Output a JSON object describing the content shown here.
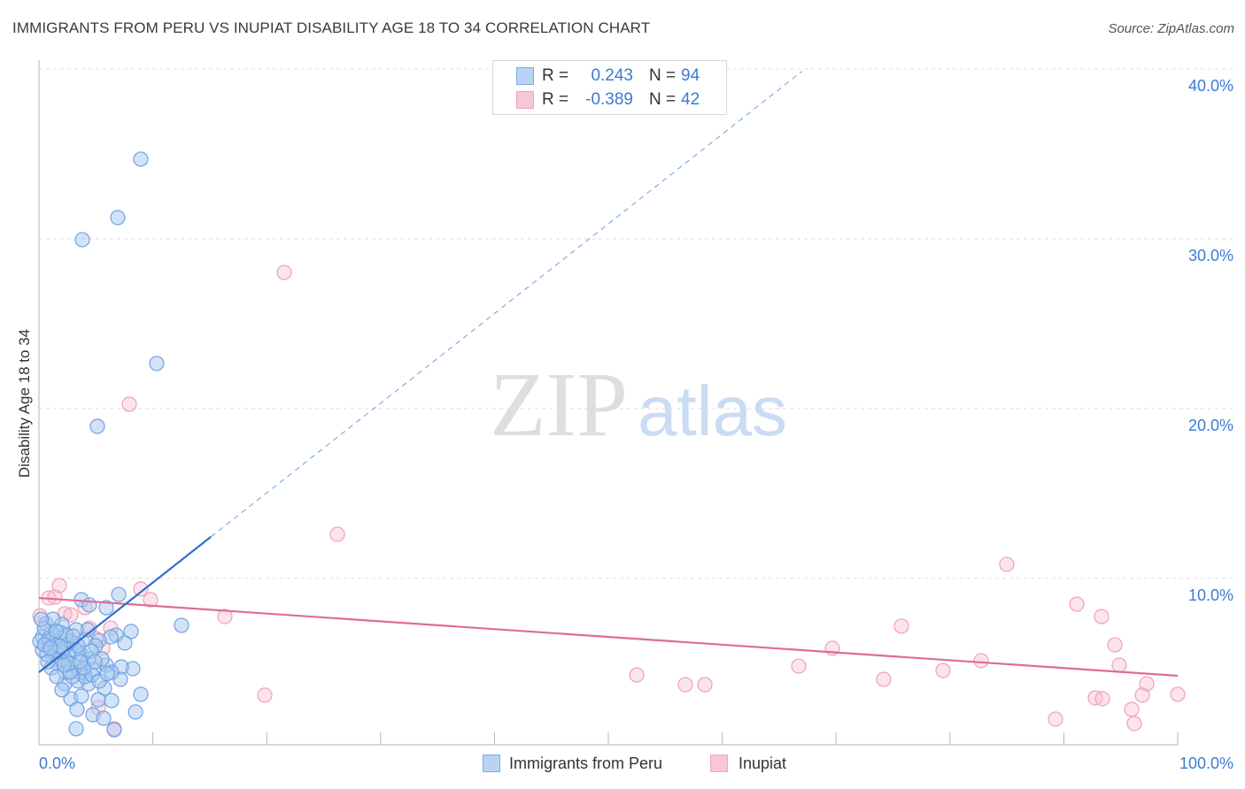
{
  "chart_data": {
    "type": "scatter",
    "title": "IMMIGRANTS FROM PERU VS INUPIAT DISABILITY AGE 18 TO 34 CORRELATION CHART",
    "source": "Source: ZipAtlas.com",
    "ylabel": "Disability Age 18 to 34",
    "xlim": [
      0,
      100
    ],
    "ylim": [
      0,
      40
    ],
    "grid": true,
    "legend_position": "top-center",
    "legend_labels": {
      "r": "R =",
      "n": "N ="
    },
    "x_ticks": [
      {
        "value": 0,
        "label": "0.0%"
      },
      {
        "value": 100,
        "label": "100.0%"
      }
    ],
    "x_tick_marks": [
      0,
      10,
      20,
      30,
      40,
      50,
      60,
      70,
      80,
      90,
      100
    ],
    "y_ticks": [
      {
        "value": 40,
        "label": "40.0%"
      },
      {
        "value": 30,
        "label": "30.0%"
      },
      {
        "value": 20,
        "label": "20.0%"
      },
      {
        "value": 10,
        "label": "10.0%"
      }
    ],
    "series": [
      {
        "name": "Immigrants from Peru",
        "r": "0.243",
        "n": "94",
        "marker_fill": "#a8c8f0",
        "marker_stroke": "#6fa2e2",
        "swatch_fill": "#b9d3f5",
        "swatch_stroke": "#7eaae6",
        "line_color": "#2f6fcf",
        "dash_color": "#6b9ee3",
        "trend": {
          "intercept": 4.48,
          "slope": 0.528,
          "solid_x_range": [
            0,
            15.1
          ],
          "dashed_x_range": [
            15.1,
            67
          ]
        },
        "points": [
          [
            8.94,
            34.69
          ],
          [
            6.92,
            31.25
          ],
          [
            3.81,
            29.95
          ],
          [
            10.34,
            22.66
          ],
          [
            5.13,
            18.96
          ],
          [
            12.52,
            7.24
          ],
          [
            7.0,
            9.06
          ],
          [
            3.73,
            8.75
          ],
          [
            5.91,
            8.28
          ],
          [
            4.43,
            8.44
          ],
          [
            8.09,
            6.88
          ],
          [
            6.77,
            6.67
          ],
          [
            4.04,
            6.41
          ],
          [
            6.3,
            6.56
          ],
          [
            5.29,
            6.35
          ],
          [
            0.62,
            7.34
          ],
          [
            2.02,
            7.29
          ],
          [
            8.24,
            4.69
          ],
          [
            7.23,
            4.79
          ],
          [
            5.91,
            4.9
          ],
          [
            4.82,
            4.64
          ],
          [
            3.11,
            4.9
          ],
          [
            7.15,
            4.06
          ],
          [
            5.75,
            3.54
          ],
          [
            4.35,
            3.8
          ],
          [
            2.26,
            3.8
          ],
          [
            3.42,
            3.96
          ],
          [
            8.94,
            3.18
          ],
          [
            2.8,
            2.92
          ],
          [
            5.21,
            2.86
          ],
          [
            6.38,
            2.81
          ],
          [
            3.34,
            2.29
          ],
          [
            4.74,
            1.98
          ],
          [
            5.68,
            1.77
          ],
          [
            8.48,
            2.14
          ],
          [
            3.27,
            1.15
          ],
          [
            6.61,
            1.09
          ],
          [
            0.93,
            6.04
          ],
          [
            1.4,
            6.3
          ],
          [
            0.31,
            6.56
          ],
          [
            1.71,
            5.78
          ],
          [
            1.24,
            5.26
          ],
          [
            0.7,
            5.52
          ],
          [
            2.02,
            5.26
          ],
          [
            2.64,
            5.52
          ],
          [
            3.19,
            5.78
          ],
          [
            3.73,
            5.52
          ],
          [
            1.63,
            5.0
          ],
          [
            1.09,
            4.74
          ],
          [
            2.33,
            4.48
          ],
          [
            3.58,
            4.48
          ],
          [
            4.04,
            4.22
          ],
          [
            4.67,
            4.32
          ],
          [
            2.95,
            4.22
          ],
          [
            5.52,
            5.26
          ],
          [
            4.35,
            5.26
          ],
          [
            3.42,
            6.04
          ],
          [
            2.49,
            6.15
          ],
          [
            1.87,
            6.46
          ],
          [
            1.09,
            6.82
          ],
          [
            0.31,
            5.78
          ],
          [
            0.08,
            6.3
          ],
          [
            0.86,
            6.46
          ],
          [
            1.4,
            5.63
          ],
          [
            2.18,
            5.89
          ],
          [
            2.8,
            6.3
          ],
          [
            4.98,
            6.04
          ],
          [
            3.97,
            4.74
          ],
          [
            5.29,
            3.96
          ],
          [
            6.38,
            4.48
          ],
          [
            3.73,
            3.07
          ],
          [
            2.02,
            3.44
          ],
          [
            2.72,
            4.48
          ],
          [
            1.56,
            4.22
          ],
          [
            0.78,
            5.1
          ],
          [
            0.47,
            7.08
          ],
          [
            1.24,
            7.6
          ],
          [
            4.28,
            6.98
          ],
          [
            3.27,
            6.98
          ],
          [
            7.54,
            6.2
          ],
          [
            4.59,
            5.73
          ],
          [
            1.87,
            6.82
          ],
          [
            2.41,
            6.67
          ],
          [
            0.5,
            6.1
          ],
          [
            1.9,
            6.0
          ],
          [
            2.6,
            5.0
          ],
          [
            3.6,
            5.1
          ],
          [
            1.0,
            5.9
          ],
          [
            0.2,
            7.6
          ],
          [
            4.9,
            5.1
          ],
          [
            6.0,
            4.4
          ],
          [
            3.0,
            6.6
          ],
          [
            2.2,
            4.9
          ],
          [
            1.5,
            6.9
          ]
        ]
      },
      {
        "name": "Inupiat",
        "r": "-0.389",
        "n": "42",
        "marker_fill": "#f7bccf",
        "marker_stroke": "#eea0bb",
        "swatch_fill": "#f9c6d6",
        "swatch_stroke": "#eea6c0",
        "line_color": "#e06b96",
        "trend": {
          "intercept": 8.85,
          "slope": -0.0458,
          "solid_x_range": [
            0,
            100
          ]
        },
        "points": [
          [
            21.54,
            28.02
          ],
          [
            7.93,
            20.26
          ],
          [
            26.21,
            12.6
          ],
          [
            84.99,
            10.83
          ],
          [
            1.79,
            9.58
          ],
          [
            8.94,
            9.38
          ],
          [
            9.8,
            8.75
          ],
          [
            0.86,
            8.85
          ],
          [
            1.4,
            8.9
          ],
          [
            91.14,
            8.49
          ],
          [
            4.04,
            8.28
          ],
          [
            2.26,
            7.92
          ],
          [
            2.8,
            7.86
          ],
          [
            16.33,
            7.76
          ],
          [
            93.31,
            7.76
          ],
          [
            75.74,
            7.19
          ],
          [
            4.43,
            7.08
          ],
          [
            6.3,
            7.08
          ],
          [
            4.98,
            6.46
          ],
          [
            94.48,
            6.09
          ],
          [
            69.67,
            5.89
          ],
          [
            82.74,
            5.16
          ],
          [
            66.72,
            4.84
          ],
          [
            94.87,
            4.9
          ],
          [
            79.39,
            4.58
          ],
          [
            52.49,
            4.32
          ],
          [
            74.18,
            4.06
          ],
          [
            56.77,
            3.75
          ],
          [
            58.48,
            3.75
          ],
          [
            97.28,
            3.8
          ],
          [
            19.83,
            3.13
          ],
          [
            100,
            3.18
          ],
          [
            96.89,
            3.13
          ],
          [
            92.77,
            2.97
          ],
          [
            93.39,
            2.92
          ],
          [
            95.96,
            2.29
          ],
          [
            5.21,
            2.4
          ],
          [
            89.27,
            1.72
          ],
          [
            96.19,
            1.46
          ],
          [
            6.61,
            1.15
          ],
          [
            0.1,
            7.8
          ],
          [
            5.6,
            5.9
          ]
        ]
      }
    ]
  },
  "watermark": {
    "zip": "ZIP",
    "atlas": "atlas"
  }
}
